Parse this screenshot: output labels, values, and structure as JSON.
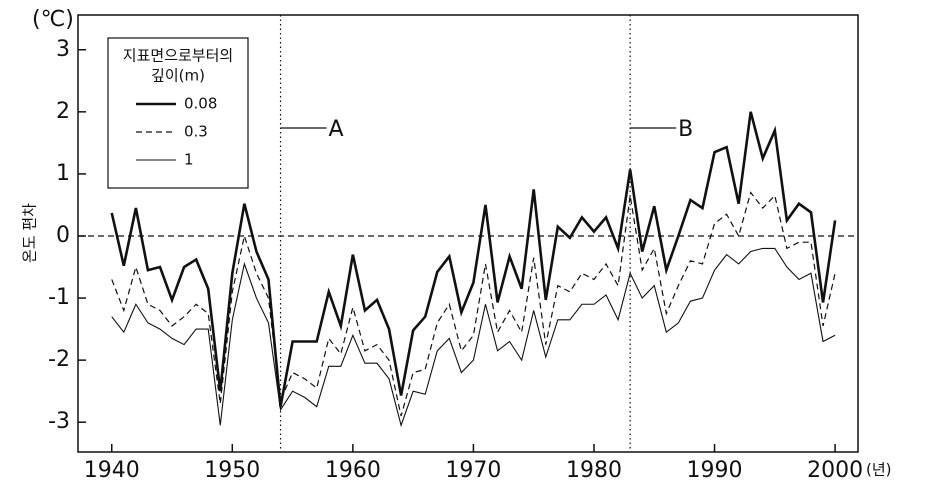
{
  "chart_data": {
    "type": "line",
    "y_axis_label": "온도 편차",
    "y_unit": "(℃)",
    "x_unit": "(년)",
    "x": [
      1940,
      1941,
      1942,
      1943,
      1944,
      1945,
      1946,
      1947,
      1948,
      1949,
      1950,
      1951,
      1952,
      1953,
      1954,
      1955,
      1956,
      1957,
      1958,
      1959,
      1960,
      1961,
      1962,
      1963,
      1964,
      1965,
      1966,
      1967,
      1968,
      1969,
      1970,
      1971,
      1972,
      1973,
      1974,
      1975,
      1976,
      1977,
      1978,
      1979,
      1980,
      1981,
      1982,
      1983,
      1984,
      1985,
      1986,
      1987,
      1988,
      1989,
      1990,
      1991,
      1992,
      1993,
      1994,
      1995,
      1996,
      1997,
      1998,
      1999,
      2000
    ],
    "series": [
      {
        "name": "0.08",
        "color": "#111111",
        "line_style": "thick",
        "values": [
          0.37,
          -0.48,
          0.45,
          -0.55,
          -0.5,
          -1.03,
          -0.5,
          -0.38,
          -0.85,
          -2.5,
          -0.6,
          0.52,
          -0.25,
          -0.7,
          -2.75,
          -1.7,
          -1.7,
          -1.7,
          -0.9,
          -1.45,
          -0.3,
          -1.2,
          -1.03,
          -1.5,
          -2.57,
          -1.52,
          -1.3,
          -0.58,
          -0.33,
          -1.23,
          -0.75,
          0.5,
          -1.07,
          -0.33,
          -0.85,
          0.75,
          -1.03,
          0.15,
          -0.03,
          0.3,
          0.07,
          0.3,
          -0.2,
          1.07,
          -0.25,
          0.48,
          -0.55,
          0.0,
          0.58,
          0.45,
          1.35,
          1.43,
          0.52,
          2.0,
          1.25,
          1.7,
          0.25,
          0.52,
          0.38,
          -1.07,
          0.25
        ]
      },
      {
        "name": "0.3",
        "color": "#111111",
        "line_style": "dashed",
        "values": [
          -0.7,
          -1.2,
          -0.5,
          -1.1,
          -1.2,
          -1.45,
          -1.3,
          -1.1,
          -1.25,
          -2.7,
          -0.9,
          0.0,
          -0.6,
          -1.0,
          -2.65,
          -2.2,
          -2.3,
          -2.45,
          -1.65,
          -1.9,
          -1.15,
          -1.85,
          -1.75,
          -2.0,
          -2.9,
          -2.2,
          -2.15,
          -1.4,
          -1.1,
          -1.85,
          -1.6,
          -0.45,
          -1.55,
          -1.2,
          -1.55,
          -0.35,
          -1.75,
          -0.8,
          -0.9,
          -0.6,
          -0.7,
          -0.45,
          -0.8,
          0.65,
          -0.55,
          -0.2,
          -1.25,
          -0.8,
          -0.4,
          -0.45,
          0.2,
          0.35,
          0.0,
          0.7,
          0.45,
          0.65,
          -0.2,
          -0.1,
          -0.1,
          -1.45,
          -0.6
        ]
      },
      {
        "name": "1",
        "color": "#111111",
        "line_style": "thin",
        "values": [
          -1.3,
          -1.55,
          -1.1,
          -1.4,
          -1.5,
          -1.65,
          -1.75,
          -1.5,
          -1.5,
          -3.05,
          -1.35,
          -0.45,
          -1.0,
          -1.4,
          -2.8,
          -2.5,
          -2.6,
          -2.75,
          -2.1,
          -2.1,
          -1.6,
          -2.05,
          -2.05,
          -2.3,
          -3.05,
          -2.5,
          -2.55,
          -1.85,
          -1.65,
          -2.2,
          -2.0,
          -1.1,
          -1.85,
          -1.7,
          -2.0,
          -1.2,
          -1.95,
          -1.35,
          -1.35,
          -1.1,
          -1.1,
          -0.95,
          -1.35,
          -0.6,
          -1.0,
          -0.8,
          -1.55,
          -1.4,
          -1.05,
          -1.0,
          -0.55,
          -0.3,
          -0.45,
          -0.25,
          -0.2,
          -0.2,
          -0.5,
          -0.7,
          -0.6,
          -1.7,
          -1.6
        ]
      }
    ],
    "legend_title": [
      "지표면으로부터의",
      "깊이(m)"
    ],
    "legend_position": "upper left",
    "xlim": [
      1937.2,
      2001.9
    ],
    "ylim": [
      -3.48,
      3.56
    ],
    "xticks": [
      1940,
      1950,
      1960,
      1970,
      1980,
      1990,
      2000
    ],
    "yticks": [
      -3,
      -2,
      -1,
      0,
      1,
      2,
      3
    ],
    "reference_line": 0,
    "annotations": [
      {
        "text": "A",
        "x": 1954,
        "y": 1.74
      },
      {
        "text": "B",
        "x": 1983,
        "y": 1.74
      }
    ]
  }
}
